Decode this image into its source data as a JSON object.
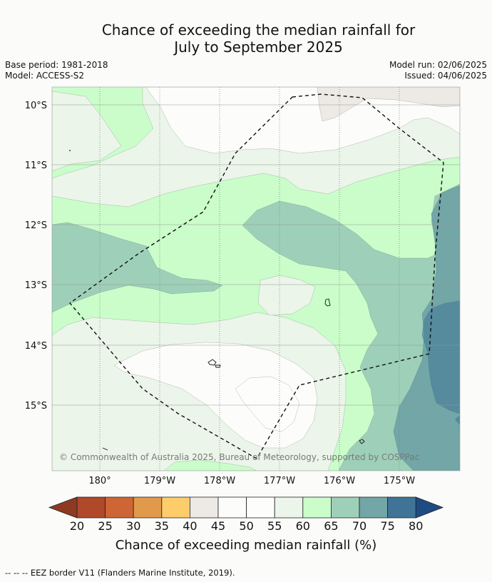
{
  "title": {
    "line1": "Chance of exceeding the median rainfall for",
    "line2": "July to September 2025"
  },
  "meta": {
    "base_period": "Base period: 1981-2018",
    "model": "Model: ACCESS-S2",
    "model_run": "Model run: 02/06/2025",
    "issued": "Issued: 04/06/2025"
  },
  "map": {
    "lat_labels": [
      "10°S",
      "11°S",
      "12°S",
      "13°S",
      "14°S",
      "15°S"
    ],
    "lon_labels": [
      "180°",
      "179°W",
      "178°W",
      "177°W",
      "176°W",
      "175°W"
    ],
    "copyright": "© Commonwealth of Australia 2025, Bureau of Meteorology, supported by COSPPac"
  },
  "legend": {
    "tick_labels": [
      "20",
      "25",
      "30",
      "35",
      "40",
      "45",
      "50",
      "55",
      "60",
      "65",
      "70",
      "75",
      "80"
    ],
    "title": "Chance of exceeding median rainfall (%)",
    "colors": {
      "below_20": "#8e3a22",
      "20-25": "#b0482a",
      "25-30": "#cd6634",
      "30-35": "#e19a4b",
      "35-40": "#fdcd6c",
      "40-45": "#ede9e4",
      "45-50": "#fcfdfb",
      "50-55": "#fdfefc",
      "55-60": "#ebf5e9",
      "60-65": "#cafdca",
      "65-70": "#9ed0b9",
      "70-75": "#72a6a7",
      "75-80": "#3f7497",
      "above_80": "#1f4b85"
    }
  },
  "footer": {
    "eez_note": "--  --  -- EEZ border V11 (Flanders Marine Institute, 2019)."
  }
}
